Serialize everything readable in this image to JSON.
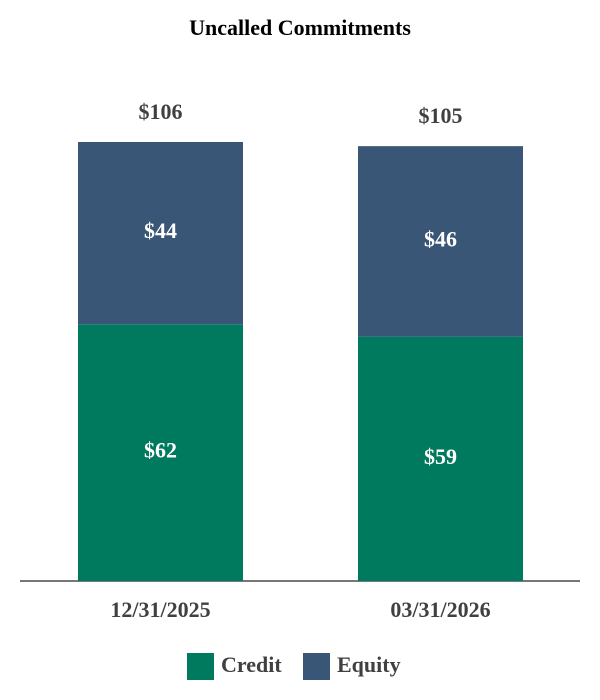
{
  "chart_data": {
    "type": "stacked-bar",
    "title": "Uncalled Commitments",
    "categories": [
      "12/31/2025",
      "03/31/2026"
    ],
    "series": [
      {
        "name": "Credit",
        "color": "#007a5e",
        "values": [
          62,
          59
        ],
        "value_labels": [
          "$62",
          "$59"
        ]
      },
      {
        "name": "Equity",
        "color": "#3a5677",
        "values": [
          44,
          46
        ],
        "value_labels": [
          "$44",
          "$46"
        ]
      }
    ],
    "totals": [
      106,
      105
    ],
    "total_labels": [
      "$106",
      "$105"
    ]
  }
}
